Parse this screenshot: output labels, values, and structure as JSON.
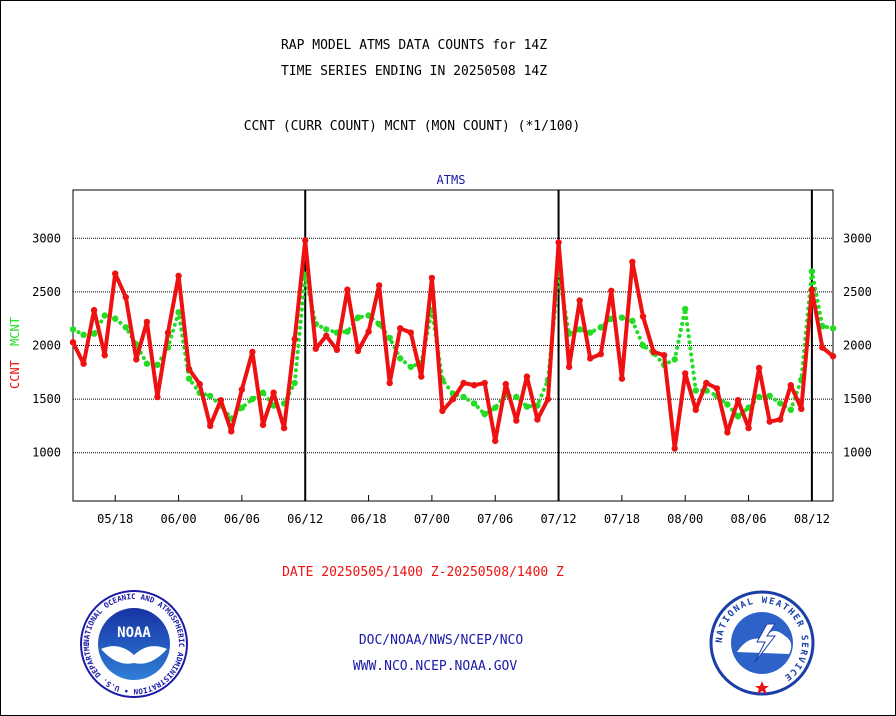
{
  "header": {
    "title_line1": "RAP MODEL ATMS DATA COUNTS for 14Z",
    "title_line2": "TIME SERIES ENDING IN 20250508 14Z",
    "subtitle": "CCNT (CURR COUNT) MCNT (MON COUNT) (*1/100)"
  },
  "footer": {
    "date_range": "DATE 20250505/1400 Z-20250508/1400 Z",
    "credit_line1": "DOC/NOAA/NWS/NCEP/NCO",
    "credit_line2": "WWW.NCO.NCEP.NOAA.GOV",
    "noaa_logo_text": "NOAA",
    "noaa_ring_text": "NATIONAL OCEANIC AND ATMOSPHERIC ADMINISTRATION • U.S. DEPARTMENT OF COMMERCE",
    "nws_ring_text": "NATIONAL WEATHER SERVICE"
  },
  "colors": {
    "ccnt": "#ee1111",
    "mcnt": "#22dd22",
    "panel_title": "#1a1aa8",
    "footer_date": "#ee1111",
    "footer_credit": "#1a1aa8",
    "grid": "#000000"
  },
  "chart_data": {
    "type": "line",
    "title": "ATMS",
    "ylabel_ccnt": "CCNT",
    "ylabel_mcnt": "MCNT",
    "ylim": [
      550,
      3450
    ],
    "y_ticks": [
      1000,
      1500,
      2000,
      2500,
      3000
    ],
    "grid_y": true,
    "x_ticks": [
      {
        "label": "05/18",
        "index": 4
      },
      {
        "label": "06/00",
        "index": 10
      },
      {
        "label": "06/06",
        "index": 16
      },
      {
        "label": "06/12",
        "index": 22
      },
      {
        "label": "06/18",
        "index": 28
      },
      {
        "label": "07/00",
        "index": 34
      },
      {
        "label": "07/06",
        "index": 40
      },
      {
        "label": "07/12",
        "index": 46
      },
      {
        "label": "07/18",
        "index": 52
      },
      {
        "label": "08/00",
        "index": 58
      },
      {
        "label": "08/06",
        "index": 64
      },
      {
        "label": "08/12",
        "index": 70
      }
    ],
    "day_boundaries": [
      22,
      46,
      70
    ],
    "series": [
      {
        "name": "CCNT",
        "style": "solid",
        "values": [
          2030,
          1830,
          2330,
          1910,
          2670,
          2450,
          1870,
          2220,
          1520,
          2120,
          2650,
          1780,
          1640,
          1250,
          1490,
          1200,
          1590,
          1940,
          1260,
          1560,
          1230,
          2060,
          2980,
          1970,
          2090,
          1960,
          2520,
          1950,
          2130,
          2560,
          1650,
          2160,
          2120,
          1710,
          2630,
          1390,
          1500,
          1650,
          1630,
          1650,
          1110,
          1640,
          1300,
          1710,
          1310,
          1500,
          2960,
          1800,
          2420,
          1880,
          1920,
          2510,
          1690,
          2780,
          2270,
          1940,
          1910,
          1040,
          1740,
          1400,
          1650,
          1600,
          1190,
          1490,
          1230,
          1790,
          1290,
          1310,
          1630,
          1410,
          2520,
          1980,
          1900
        ]
      },
      {
        "name": "MCNT",
        "style": "dotted",
        "values": [
          2150,
          2100,
          2110,
          2280,
          2250,
          2170,
          2010,
          1830,
          1820,
          1980,
          2310,
          1690,
          1560,
          1530,
          1440,
          1320,
          1420,
          1500,
          1560,
          1440,
          1460,
          1650,
          2660,
          2200,
          2150,
          2120,
          2130,
          2260,
          2280,
          2200,
          2070,
          1880,
          1800,
          1840,
          2330,
          1680,
          1550,
          1520,
          1460,
          1360,
          1420,
          1540,
          1520,
          1430,
          1440,
          1680,
          2680,
          2110,
          2150,
          2120,
          2170,
          2250,
          2260,
          2230,
          2000,
          1930,
          1820,
          1870,
          2340,
          1580,
          1580,
          1530,
          1450,
          1340,
          1420,
          1520,
          1530,
          1460,
          1400,
          1680,
          2690,
          2180,
          2160
        ]
      }
    ]
  }
}
